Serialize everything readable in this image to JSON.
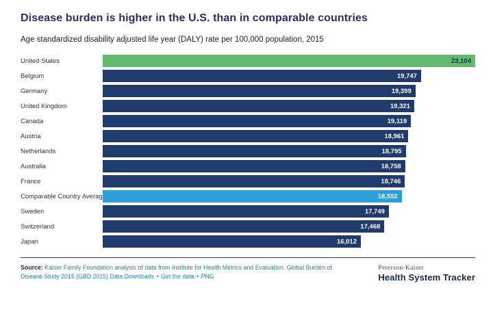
{
  "header": {
    "title": "Disease burden is higher in the U.S. than in comparable countries",
    "subtitle": "Age standardized disability adjusted life year (DALY) rate per 100,000 population, 2015"
  },
  "chart_data": {
    "type": "bar",
    "orientation": "horizontal",
    "title": "Age standardized disability adjusted life year (DALY) rate per 100,000 population, 2015",
    "xlabel": "",
    "ylabel": "",
    "xlim": [
      0,
      23104
    ],
    "grid": false,
    "legend": false,
    "categories": [
      "United States",
      "Belgium",
      "Germany",
      "United Kingdom",
      "Canada",
      "Austria",
      "Netherlands",
      "Australia",
      "France",
      "Comparable Country Average",
      "Sweden",
      "Switzerland",
      "Japan"
    ],
    "values": [
      23104,
      19747,
      19399,
      19321,
      19119,
      18961,
      18795,
      18758,
      18746,
      18552,
      17749,
      17468,
      16012
    ],
    "bars": [
      {
        "label": "United States",
        "value": 23104,
        "display": "23,104",
        "color": "#62ba6c",
        "value_color": "#14304f"
      },
      {
        "label": "Belgium",
        "value": 19747,
        "display": "19,747",
        "color": "#1f3b6e",
        "value_color": "#ffffff"
      },
      {
        "label": "Germany",
        "value": 19399,
        "display": "19,399",
        "color": "#1f3b6e",
        "value_color": "#ffffff"
      },
      {
        "label": "United Kingdom",
        "value": 19321,
        "display": "19,321",
        "color": "#1f3b6e",
        "value_color": "#ffffff"
      },
      {
        "label": "Canada",
        "value": 19119,
        "display": "19,119",
        "color": "#1f3b6e",
        "value_color": "#ffffff"
      },
      {
        "label": "Austria",
        "value": 18961,
        "display": "18,961",
        "color": "#1f3b6e",
        "value_color": "#ffffff"
      },
      {
        "label": "Netherlands",
        "value": 18795,
        "display": "18,795",
        "color": "#1f3b6e",
        "value_color": "#ffffff"
      },
      {
        "label": "Australia",
        "value": 18758,
        "display": "18,758",
        "color": "#1f3b6e",
        "value_color": "#ffffff"
      },
      {
        "label": "France",
        "value": 18746,
        "display": "18,746",
        "color": "#1f3b6e",
        "value_color": "#ffffff"
      },
      {
        "label": "Comparable Country Average",
        "value": 18552,
        "display": "18,552",
        "color": "#2b9fd9",
        "value_color": "#ffffff"
      },
      {
        "label": "Sweden",
        "value": 17749,
        "display": "17,749",
        "color": "#1f3b6e",
        "value_color": "#ffffff"
      },
      {
        "label": "Switzerland",
        "value": 17468,
        "display": "17,468",
        "color": "#1f3b6e",
        "value_color": "#ffffff"
      },
      {
        "label": "Japan",
        "value": 16012,
        "display": "16,012",
        "color": "#1f3b6e",
        "value_color": "#ffffff"
      }
    ],
    "colors": {
      "default_bar": "#1f3b6e",
      "highlight_us": "#62ba6c",
      "highlight_average": "#2b9fd9",
      "title": "#2b2b6b",
      "link": "#1c7fc4"
    }
  },
  "footer": {
    "source_label": "Source:",
    "source_text": "Kaiser Family Foundation analysis of data from Institute for Health Metrics and Evaluation. Global Burden of Disease Study 2015 (GBD 2015) Data Downloads",
    "separator": "•",
    "link_get_data": "Get the data",
    "link_png": "PNG",
    "brand_line1": "Peterson-Kaiser",
    "brand_line2": "Health System Tracker"
  }
}
